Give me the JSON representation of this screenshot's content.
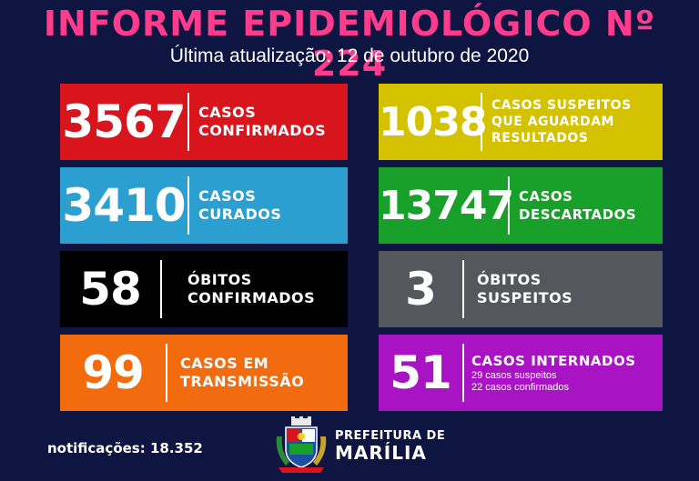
{
  "header": {
    "title": "INFORME EPIDEMIOLÓGICO Nº 224",
    "subtitle": "Última atualização: 12 de outubro de 2020"
  },
  "colors": {
    "background": "#0d1540",
    "title": "#ff3b8c",
    "red": "#d8141c",
    "yellow": "#d4c200",
    "blue": "#2b9fcf",
    "green": "#18a02a",
    "black": "#000000",
    "gray": "#54585c",
    "orange": "#f26b0f",
    "purple": "#a814c4"
  },
  "cards": {
    "confirmed": {
      "value": "3567",
      "line1": "CASOS",
      "line2": "CONFIRMADOS"
    },
    "suspected": {
      "value": "1038",
      "line1": "CASOS SUSPEITOS",
      "line2": "QUE AGUARDAM",
      "line3": "RESULTADOS"
    },
    "cured": {
      "value": "3410",
      "line1": "CASOS",
      "line2": "CURADOS"
    },
    "discarded": {
      "value": "13747",
      "line1": "CASOS",
      "line2": "DESCARTADOS"
    },
    "deaths": {
      "value": "58",
      "line1": "ÓBITOS",
      "line2": "CONFIRMADOS"
    },
    "suspected_deaths": {
      "value": "3",
      "line1": "ÓBITOS",
      "line2": "SUSPEITOS"
    },
    "transmission": {
      "value": "99",
      "line1": "CASOS EM",
      "line2": "TRANSMISSÃO"
    },
    "hospitalized": {
      "value": "51",
      "line1": "CASOS INTERNADOS",
      "detail1": "29 casos suspeitos",
      "detail2": "22 casos confirmados"
    }
  },
  "footer": {
    "notifications": "notificações: 18.352",
    "pref_line1": "PREFEITURA DE",
    "pref_line2": "MARÍLIA"
  }
}
